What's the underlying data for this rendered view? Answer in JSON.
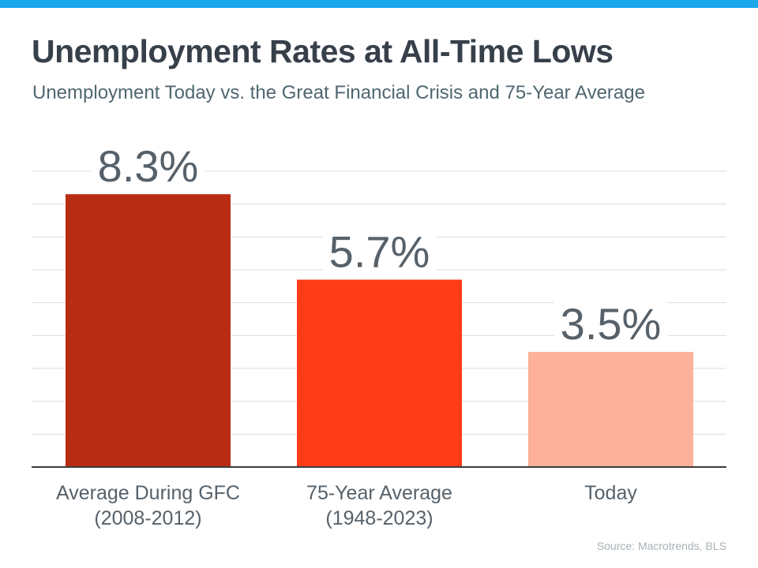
{
  "header": {
    "title": "Unemployment Rates at All-Time Lows",
    "subtitle": "Unemployment Today vs. the Great Financial Crisis and 75-Year Average"
  },
  "footer": {
    "source": "Source: Macrotrends, BLS"
  },
  "colors": {
    "accent_bar": "#1aa7ec",
    "bar_gfc": "#b92c14",
    "bar_avg": "#ff3c17",
    "bar_today": "#fdb09a",
    "value_label": "#56616a",
    "category_label": "#56616a",
    "grid": "#dcdcdc",
    "axis": "#3c3c3c"
  },
  "chart_data": {
    "type": "bar",
    "title": "Unemployment Rates at All-Time Lows",
    "xlabel": "",
    "ylabel": "",
    "ylim": [
      0,
      9
    ],
    "grid": true,
    "categories": [
      [
        "Average During GFC",
        "(2008-2012)"
      ],
      [
        "75-Year Average",
        "(1948-2023)"
      ],
      [
        "Today",
        ""
      ]
    ],
    "values": [
      8.3,
      5.7,
      3.5
    ],
    "value_labels": [
      "8.3%",
      "5.7%",
      "3.5%"
    ]
  }
}
